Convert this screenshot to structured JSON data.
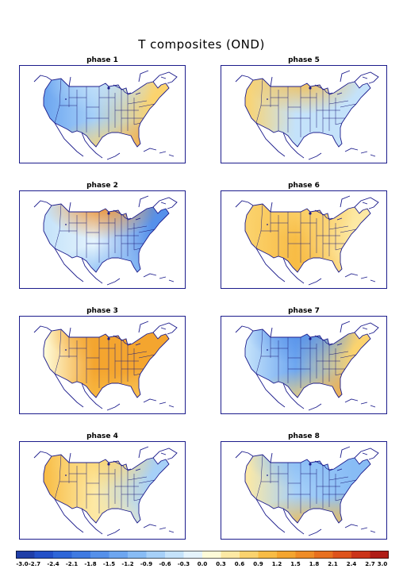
{
  "title": "T composites (OND)",
  "panels": [
    {
      "label": "phase 1",
      "west": -1.4,
      "central": -0.9,
      "north": -0.6,
      "east": 0.6,
      "southeast": 1.6,
      "texas": 0.6
    },
    {
      "label": "phase 5",
      "west": 0.6,
      "central": -0.6,
      "north": 0.9,
      "east": -0.6,
      "southeast": -0.6,
      "texas": -0.4
    },
    {
      "label": "phase 2",
      "west": -0.6,
      "central": -0.3,
      "north": 1.5,
      "east": -1.8,
      "southeast": -1.2,
      "texas": -1.0
    },
    {
      "label": "phase 6",
      "west": 0.6,
      "central": 0.9,
      "north": 0.6,
      "east": 0.3,
      "southeast": 0.3,
      "texas": 0.9
    },
    {
      "label": "phase 3",
      "west": 0.2,
      "central": 1.2,
      "north": 1.4,
      "east": 1.3,
      "southeast": 0.6,
      "texas": 0.9
    },
    {
      "label": "phase 7",
      "west": -0.6,
      "central": -1.4,
      "north": -1.8,
      "east": 0.6,
      "southeast": 1.6,
      "texas": 0.6
    },
    {
      "label": "phase 4",
      "west": 0.9,
      "central": 0.3,
      "north": 0.8,
      "east": -0.8,
      "southeast": -0.6,
      "texas": 0.3
    },
    {
      "label": "phase 8",
      "west": 0.3,
      "central": -0.9,
      "north": -1.2,
      "east": -1.2,
      "southeast": 1.0,
      "texas": 0.9
    }
  ],
  "colorbar": {
    "labels": [
      "-3.0",
      "-2.7",
      "-2.4",
      "-2.1",
      "-1.8",
      "-1.5",
      "-1.2",
      "-0.9",
      "-0.6",
      "-0.3",
      "0.0",
      "0.3",
      "0.6",
      "0.9",
      "1.2",
      "1.5",
      "1.8",
      "2.1",
      "2.4",
      "2.7",
      "3.0"
    ],
    "colors": [
      "#1f3ea8",
      "#2350c8",
      "#2e66d8",
      "#3f7ae2",
      "#5590ea",
      "#6da6f0",
      "#88bcf5",
      "#a6d0f8",
      "#c4e2fa",
      "#e4f3fc",
      "#fefbd8",
      "#fde9a4",
      "#fbd36e",
      "#f8bc45",
      "#f4a52f",
      "#ef8c26",
      "#e8701f",
      "#de531b",
      "#cc3419",
      "#b01d17"
    ]
  }
}
